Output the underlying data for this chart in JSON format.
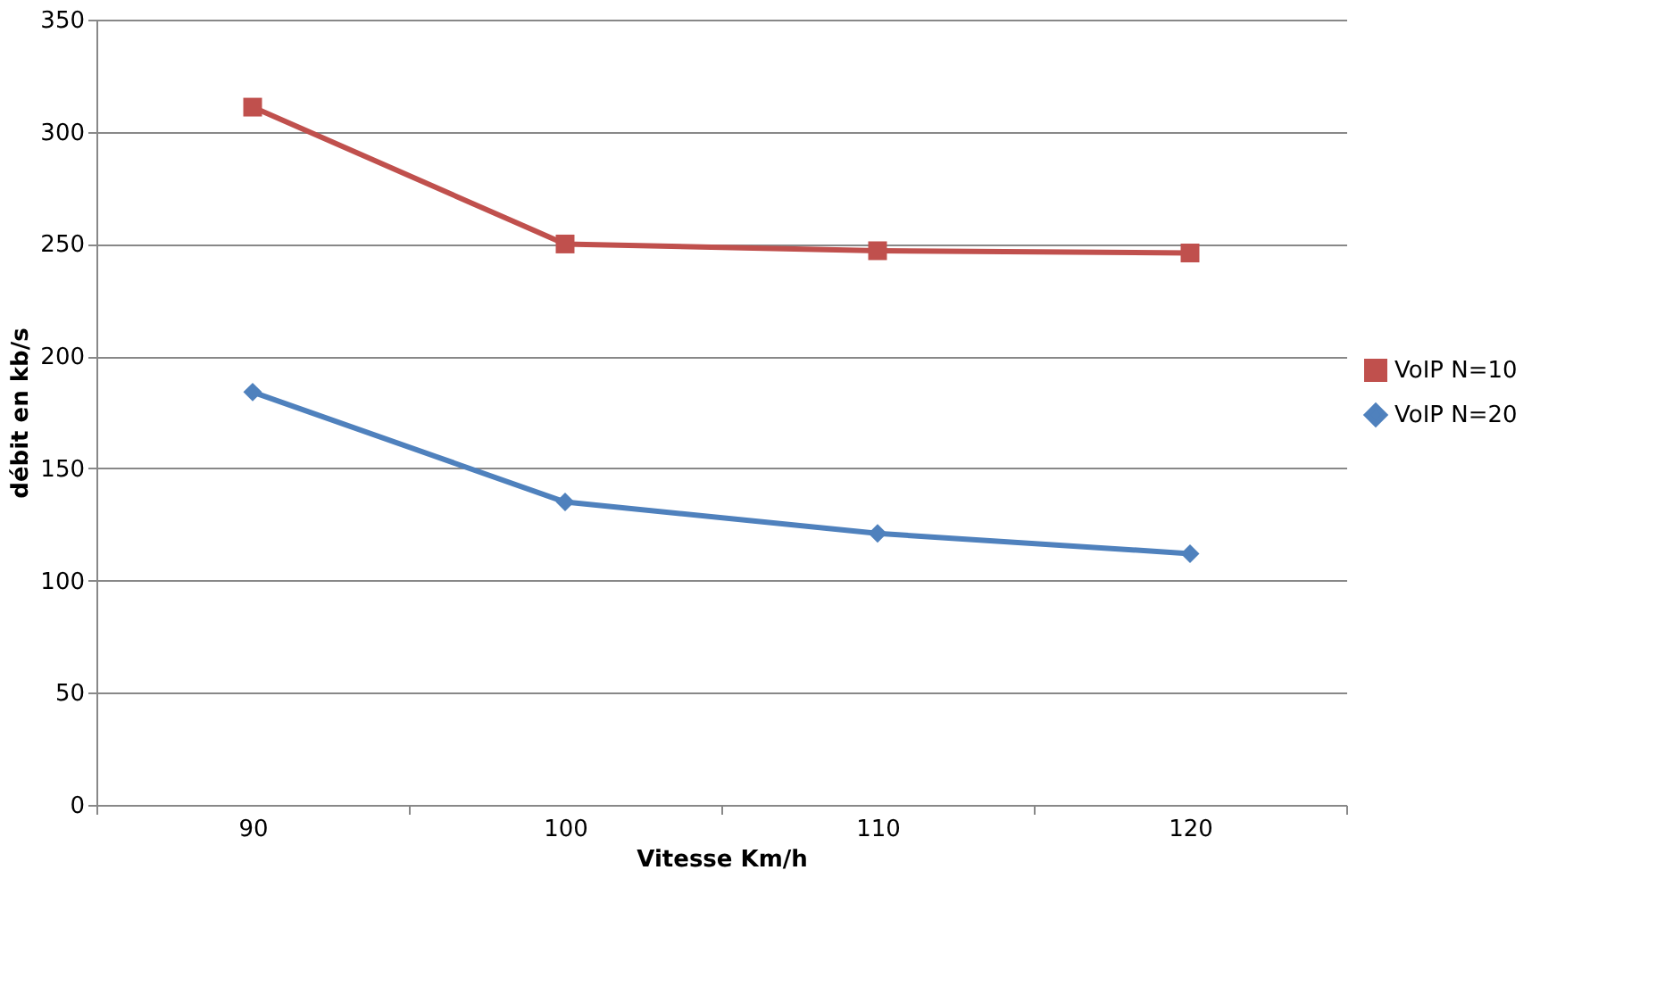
{
  "chart_data": {
    "type": "line",
    "xlabel": "Vitesse Km/h",
    "ylabel": "débit en kb/s",
    "categories": [
      "90",
      "100",
      "110",
      "120"
    ],
    "series": [
      {
        "name": "VoIP N=10",
        "color": "#c0504d",
        "marker": "square",
        "values": [
          311,
          250,
          247,
          246
        ]
      },
      {
        "name": "VoIP N=20",
        "color": "#4f81bd",
        "marker": "diamond",
        "values": [
          184,
          135,
          121,
          112
        ]
      }
    ],
    "ylim": [
      0,
      350
    ],
    "yticks": [
      0,
      50,
      100,
      150,
      200,
      250,
      300,
      350
    ],
    "grid": "y",
    "legend": "right",
    "line_style": "solid"
  }
}
